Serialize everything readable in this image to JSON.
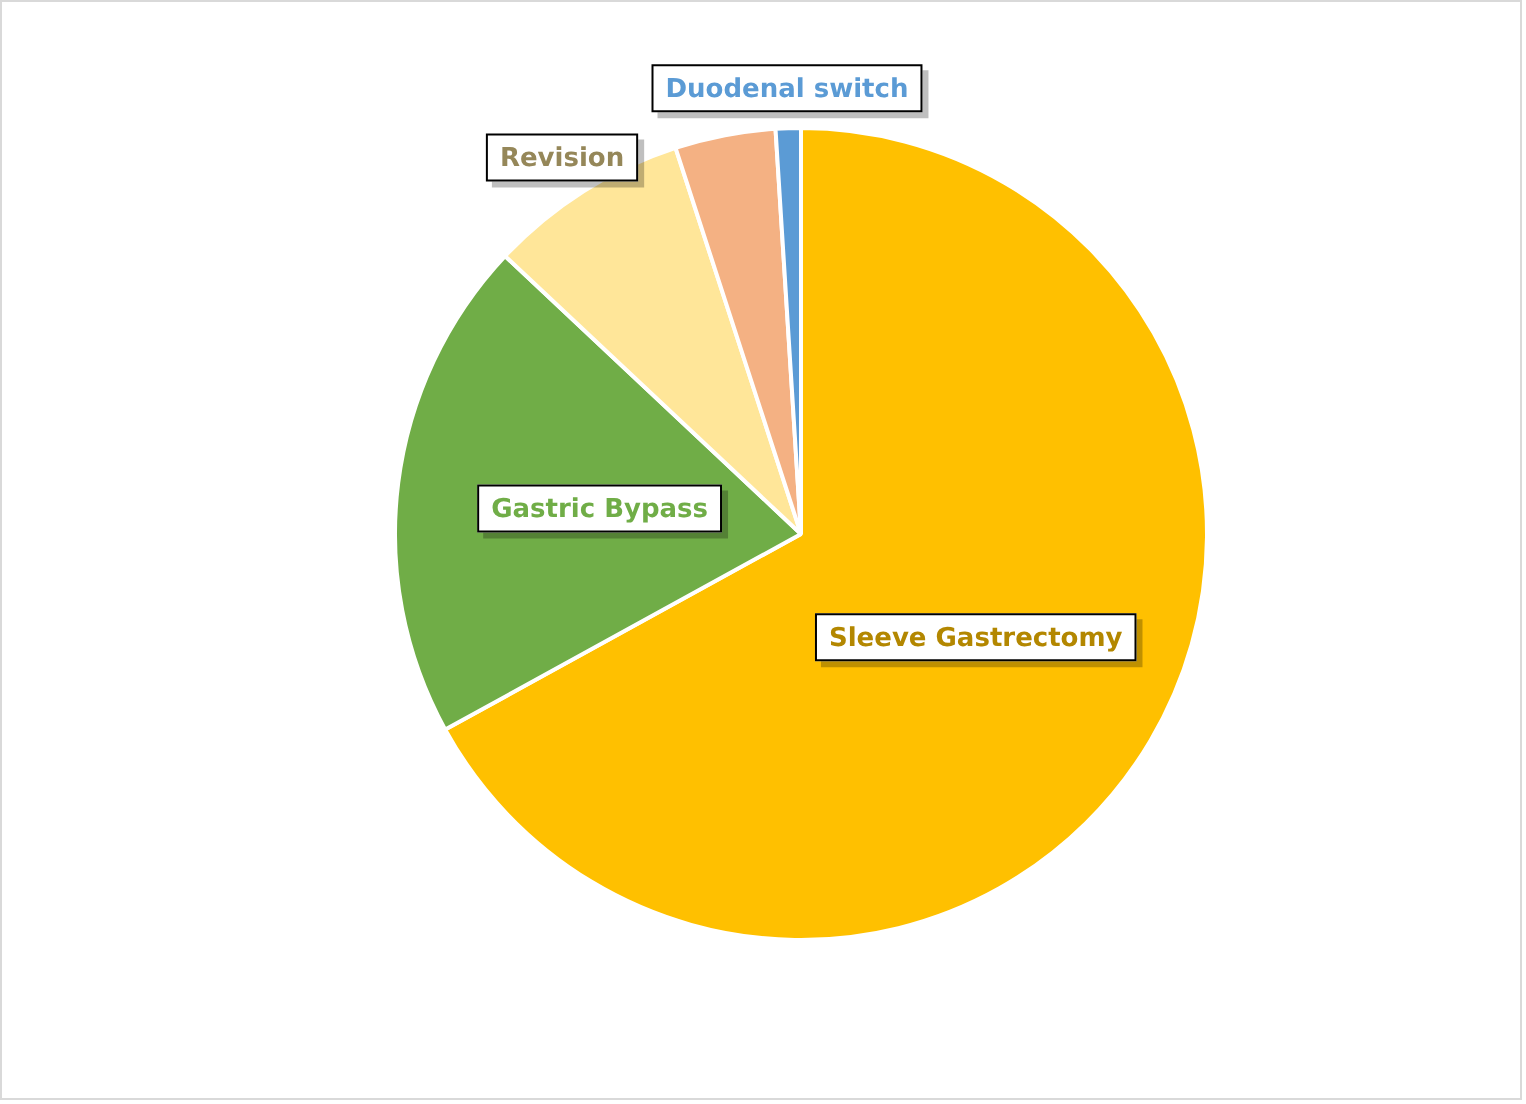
{
  "chart_data": {
    "type": "pie",
    "categories": [
      "Sleeve Gastrectomy",
      "Gastric Bypass",
      "Revision",
      null,
      "Duodenal switch"
    ],
    "values": [
      67,
      20,
      8,
      4,
      1
    ],
    "colors": [
      "#ffc000",
      "#70ad47",
      "#ffe699",
      "#f4b183",
      "#5b9bd5"
    ]
  }
}
